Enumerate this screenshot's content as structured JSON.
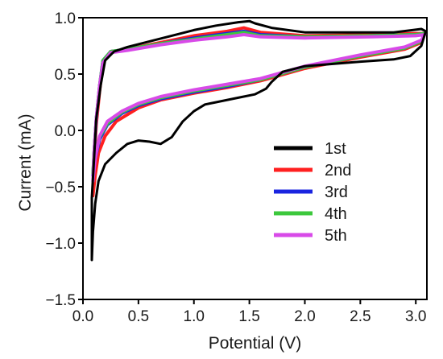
{
  "chart_data": {
    "type": "line",
    "title": "",
    "xlabel": "Potential (V)",
    "ylabel": "Current (mA)",
    "xlim": [
      0,
      3.1
    ],
    "ylim": [
      -1.5,
      1.0
    ],
    "x_ticks": [
      0.0,
      0.5,
      1.0,
      1.5,
      2.0,
      2.5,
      3.0
    ],
    "x_tick_labels": [
      "0.0",
      "0.5",
      "1.0",
      "1.5",
      "2.0",
      "2.5",
      "3.0"
    ],
    "y_ticks": [
      1.0,
      0.5,
      0.0,
      -0.5,
      -1.0,
      -1.5
    ],
    "y_tick_labels": [
      "1.0",
      "0.5",
      "0.0",
      "−0.5",
      "−1.0",
      "−1.5"
    ],
    "grid": false,
    "legend_position": "lower-right",
    "series": [
      {
        "name": "1st",
        "color": "#000000",
        "points": [
          [
            0.08,
            -1.15
          ],
          [
            0.09,
            -0.9
          ],
          [
            0.11,
            -0.65
          ],
          [
            0.14,
            -0.45
          ],
          [
            0.2,
            -0.3
          ],
          [
            0.3,
            -0.2
          ],
          [
            0.4,
            -0.12
          ],
          [
            0.5,
            -0.09
          ],
          [
            0.6,
            -0.1
          ],
          [
            0.7,
            -0.12
          ],
          [
            0.8,
            -0.06
          ],
          [
            0.9,
            0.08
          ],
          [
            1.0,
            0.17
          ],
          [
            1.1,
            0.23
          ],
          [
            1.2,
            0.25
          ],
          [
            1.4,
            0.29
          ],
          [
            1.55,
            0.32
          ],
          [
            1.65,
            0.37
          ],
          [
            1.7,
            0.43
          ],
          [
            1.8,
            0.52
          ],
          [
            2.0,
            0.57
          ],
          [
            2.5,
            0.61
          ],
          [
            2.8,
            0.63
          ],
          [
            2.95,
            0.66
          ],
          [
            3.05,
            0.75
          ],
          [
            3.09,
            0.88
          ],
          [
            3.05,
            0.9
          ],
          [
            2.8,
            0.87
          ],
          [
            2.5,
            0.87
          ],
          [
            2.0,
            0.87
          ],
          [
            1.7,
            0.91
          ],
          [
            1.55,
            0.95
          ],
          [
            1.5,
            0.97
          ],
          [
            1.4,
            0.96
          ],
          [
            1.2,
            0.93
          ],
          [
            1.0,
            0.89
          ],
          [
            0.8,
            0.84
          ],
          [
            0.6,
            0.79
          ],
          [
            0.4,
            0.74
          ],
          [
            0.28,
            0.7
          ],
          [
            0.2,
            0.62
          ],
          [
            0.16,
            0.4
          ],
          [
            0.12,
            0.1
          ],
          [
            0.1,
            -0.25
          ],
          [
            0.08,
            -0.6
          ],
          [
            0.08,
            -1.15
          ]
        ]
      },
      {
        "name": "2nd",
        "color": "#ff2020",
        "points": [
          [
            0.09,
            -0.58
          ],
          [
            0.11,
            -0.4
          ],
          [
            0.14,
            -0.2
          ],
          [
            0.2,
            -0.05
          ],
          [
            0.3,
            0.08
          ],
          [
            0.5,
            0.2
          ],
          [
            0.7,
            0.27
          ],
          [
            1.0,
            0.33
          ],
          [
            1.3,
            0.38
          ],
          [
            1.6,
            0.44
          ],
          [
            2.0,
            0.55
          ],
          [
            2.5,
            0.65
          ],
          [
            2.9,
            0.72
          ],
          [
            3.05,
            0.78
          ],
          [
            3.08,
            0.86
          ],
          [
            3.0,
            0.86
          ],
          [
            2.6,
            0.85
          ],
          [
            2.0,
            0.84
          ],
          [
            1.6,
            0.87
          ],
          [
            1.45,
            0.91
          ],
          [
            1.3,
            0.88
          ],
          [
            1.0,
            0.84
          ],
          [
            0.7,
            0.78
          ],
          [
            0.4,
            0.72
          ],
          [
            0.25,
            0.7
          ],
          [
            0.18,
            0.6
          ],
          [
            0.15,
            0.35
          ],
          [
            0.12,
            0.05
          ],
          [
            0.1,
            -0.3
          ],
          [
            0.09,
            -0.58
          ]
        ]
      },
      {
        "name": "3rd",
        "color": "#1a24e0",
        "points": [
          [
            0.09,
            -0.4
          ],
          [
            0.11,
            -0.25
          ],
          [
            0.15,
            -0.08
          ],
          [
            0.22,
            0.05
          ],
          [
            0.35,
            0.15
          ],
          [
            0.5,
            0.22
          ],
          [
            0.7,
            0.28
          ],
          [
            1.0,
            0.34
          ],
          [
            1.3,
            0.39
          ],
          [
            1.6,
            0.45
          ],
          [
            2.0,
            0.56
          ],
          [
            2.5,
            0.66
          ],
          [
            2.9,
            0.73
          ],
          [
            3.05,
            0.79
          ],
          [
            3.08,
            0.86
          ],
          [
            3.0,
            0.85
          ],
          [
            2.6,
            0.84
          ],
          [
            2.0,
            0.83
          ],
          [
            1.6,
            0.85
          ],
          [
            1.45,
            0.88
          ],
          [
            1.3,
            0.86
          ],
          [
            1.0,
            0.82
          ],
          [
            0.7,
            0.77
          ],
          [
            0.4,
            0.72
          ],
          [
            0.25,
            0.7
          ],
          [
            0.18,
            0.62
          ],
          [
            0.15,
            0.4
          ],
          [
            0.12,
            0.1
          ],
          [
            0.1,
            -0.2
          ],
          [
            0.09,
            -0.4
          ]
        ]
      },
      {
        "name": "4th",
        "color": "#3cc83c",
        "points": [
          [
            0.09,
            -0.38
          ],
          [
            0.11,
            -0.23
          ],
          [
            0.15,
            -0.06
          ],
          [
            0.22,
            0.06
          ],
          [
            0.35,
            0.16
          ],
          [
            0.5,
            0.23
          ],
          [
            0.7,
            0.29
          ],
          [
            1.0,
            0.35
          ],
          [
            1.3,
            0.4
          ],
          [
            1.6,
            0.45
          ],
          [
            2.0,
            0.56
          ],
          [
            2.5,
            0.66
          ],
          [
            2.9,
            0.73
          ],
          [
            3.05,
            0.79
          ],
          [
            3.08,
            0.86
          ],
          [
            3.0,
            0.85
          ],
          [
            2.6,
            0.84
          ],
          [
            2.0,
            0.83
          ],
          [
            1.6,
            0.84
          ],
          [
            1.45,
            0.87
          ],
          [
            1.3,
            0.85
          ],
          [
            1.0,
            0.81
          ],
          [
            0.7,
            0.77
          ],
          [
            0.4,
            0.72
          ],
          [
            0.25,
            0.7
          ],
          [
            0.18,
            0.62
          ],
          [
            0.15,
            0.4
          ],
          [
            0.12,
            0.1
          ],
          [
            0.1,
            -0.2
          ],
          [
            0.09,
            -0.38
          ]
        ]
      },
      {
        "name": "5th",
        "color": "#d84ae8",
        "points": [
          [
            0.09,
            -0.45
          ],
          [
            0.11,
            -0.25
          ],
          [
            0.15,
            -0.05
          ],
          [
            0.22,
            0.08
          ],
          [
            0.35,
            0.17
          ],
          [
            0.5,
            0.24
          ],
          [
            0.7,
            0.3
          ],
          [
            1.0,
            0.36
          ],
          [
            1.3,
            0.41
          ],
          [
            1.6,
            0.46
          ],
          [
            2.0,
            0.57
          ],
          [
            2.5,
            0.67
          ],
          [
            2.9,
            0.74
          ],
          [
            3.05,
            0.8
          ],
          [
            3.08,
            0.85
          ],
          [
            3.0,
            0.84
          ],
          [
            2.6,
            0.83
          ],
          [
            2.0,
            0.82
          ],
          [
            1.6,
            0.83
          ],
          [
            1.45,
            0.85
          ],
          [
            1.3,
            0.83
          ],
          [
            1.0,
            0.8
          ],
          [
            0.7,
            0.76
          ],
          [
            0.4,
            0.71
          ],
          [
            0.25,
            0.69
          ],
          [
            0.18,
            0.6
          ],
          [
            0.15,
            0.4
          ],
          [
            0.12,
            0.1
          ],
          [
            0.1,
            -0.2
          ],
          [
            0.09,
            -0.45
          ]
        ]
      }
    ]
  }
}
